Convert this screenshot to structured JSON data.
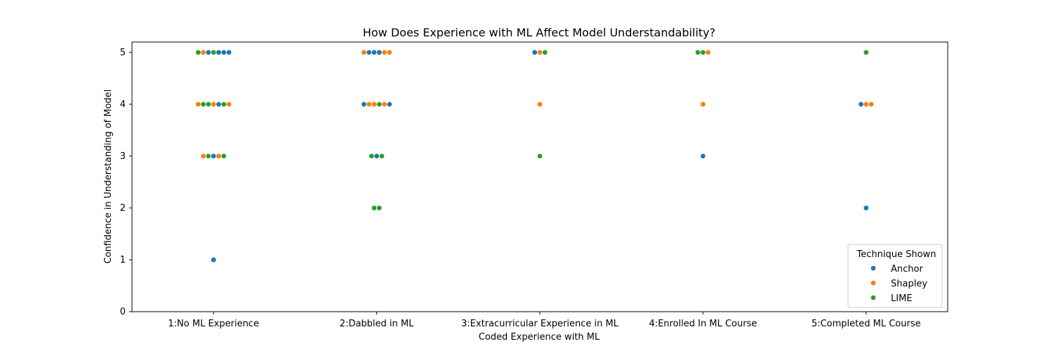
{
  "chart_data": {
    "type": "scatter",
    "subtype": "swarm",
    "title": "How Does Experience with ML Affect Model Understandability?",
    "xlabel": "Coded Experience with ML",
    "ylabel": "Confidence in Understanding of Model",
    "categories": [
      "1:No ML Experience",
      "2:Dabbled in ML",
      "3:Extracurricular Experience in ML",
      "4:Enrolled In ML Course",
      "5:Completed ML Course"
    ],
    "yticks": [
      "0",
      "1",
      "2",
      "3",
      "4",
      "5"
    ],
    "ylim": [
      0,
      5.2
    ],
    "grid": false,
    "legend": {
      "title": "Technique Shown",
      "placement": "lower right"
    },
    "series": [
      {
        "name": "Anchor",
        "color": "#1f77b4"
      },
      {
        "name": "Shapley",
        "color": "#ff7f0e"
      },
      {
        "name": "LIME",
        "color": "#2ca02c"
      }
    ],
    "swarms": [
      {
        "category": "1:No ML Experience",
        "y": 5,
        "points": [
          "LIME",
          "Shapley",
          "Anchor",
          "LIME",
          "Anchor",
          "Anchor",
          "Anchor"
        ]
      },
      {
        "category": "1:No ML Experience",
        "y": 4,
        "points": [
          "Shapley",
          "LIME",
          "LIME",
          "Shapley",
          "Anchor",
          "LIME",
          "Shapley"
        ]
      },
      {
        "category": "1:No ML Experience",
        "y": 3,
        "points": [
          "Shapley",
          "LIME",
          "Anchor",
          "Shapley",
          "LIME"
        ]
      },
      {
        "category": "1:No ML Experience",
        "y": 1,
        "points": [
          "Anchor"
        ]
      },
      {
        "category": "2:Dabbled in ML",
        "y": 5,
        "points": [
          "Shapley",
          "Anchor",
          "Anchor",
          "Anchor",
          "Shapley",
          "Shapley"
        ]
      },
      {
        "category": "2:Dabbled in ML",
        "y": 4,
        "points": [
          "Anchor",
          "Shapley",
          "Shapley",
          "LIME",
          "Shapley",
          "Anchor"
        ]
      },
      {
        "category": "2:Dabbled in ML",
        "y": 3,
        "points": [
          "LIME",
          "Anchor",
          "LIME"
        ]
      },
      {
        "category": "2:Dabbled in ML",
        "y": 2,
        "points": [
          "LIME",
          "LIME"
        ]
      },
      {
        "category": "3:Extracurricular Experience in ML",
        "y": 5,
        "points": [
          "Anchor",
          "Shapley",
          "LIME"
        ]
      },
      {
        "category": "3:Extracurricular Experience in ML",
        "y": 4,
        "points": [
          "Shapley"
        ]
      },
      {
        "category": "3:Extracurricular Experience in ML",
        "y": 3,
        "points": [
          "LIME"
        ]
      },
      {
        "category": "4:Enrolled In ML Course",
        "y": 5,
        "points": [
          "LIME",
          "LIME",
          "Shapley"
        ]
      },
      {
        "category": "4:Enrolled In ML Course",
        "y": 4,
        "points": [
          "Shapley"
        ]
      },
      {
        "category": "4:Enrolled In ML Course",
        "y": 3,
        "points": [
          "Anchor"
        ]
      },
      {
        "category": "5:Completed ML Course",
        "y": 5,
        "points": [
          "LIME"
        ]
      },
      {
        "category": "5:Completed ML Course",
        "y": 4,
        "points": [
          "Anchor",
          "Shapley",
          "Shapley"
        ]
      },
      {
        "category": "5:Completed ML Course",
        "y": 2,
        "points": [
          "Anchor"
        ]
      }
    ]
  }
}
